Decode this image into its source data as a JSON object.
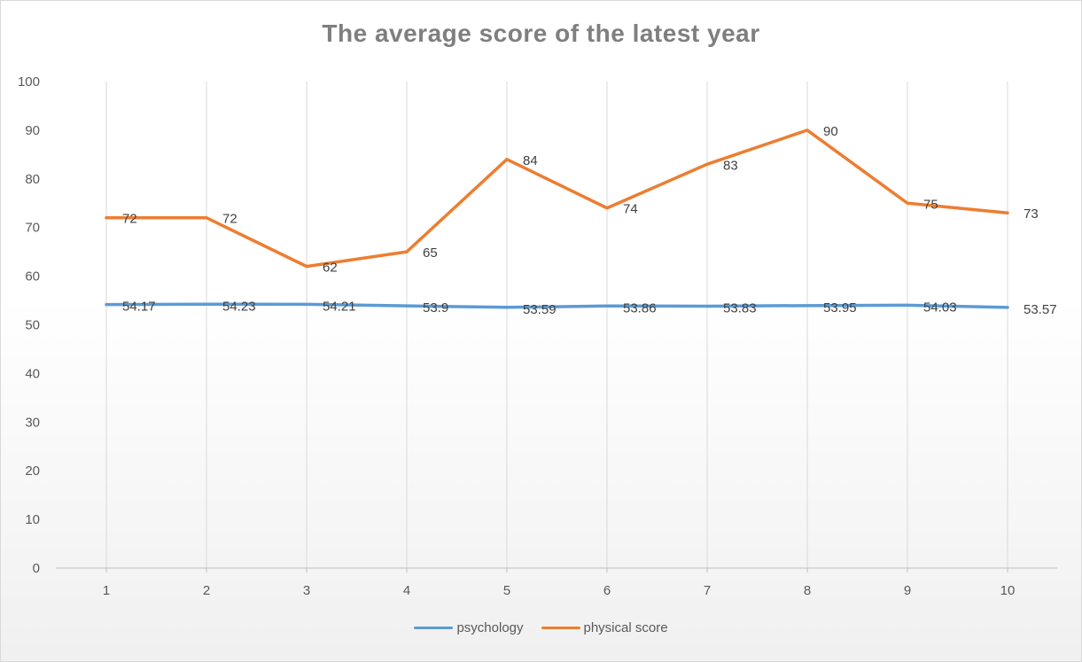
{
  "chart_data": {
    "type": "line",
    "title": "The average score of the latest year",
    "categories": [
      "1",
      "2",
      "3",
      "4",
      "5",
      "6",
      "7",
      "8",
      "9",
      "10"
    ],
    "ylim": [
      0,
      100
    ],
    "yticks": [
      "0",
      "10",
      "20",
      "30",
      "40",
      "50",
      "60",
      "70",
      "80",
      "90",
      "100"
    ],
    "grid": "vertical",
    "legend_position": "bottom",
    "series": [
      {
        "name": "psychology",
        "color": "#5b9bd5",
        "values": [
          54.17,
          54.23,
          54.21,
          53.9,
          53.59,
          53.86,
          53.83,
          53.95,
          54.03,
          53.57
        ],
        "labels": [
          "54.17",
          "54.23",
          "54.21",
          "53.9",
          "53.59",
          "53.86",
          "53.83",
          "53.95",
          "54.03",
          "53.57"
        ]
      },
      {
        "name": "physical score",
        "color": "#ed7d31",
        "values": [
          72,
          72,
          62,
          65,
          84,
          74,
          83,
          90,
          75,
          73
        ],
        "labels": [
          "72",
          "72",
          "62",
          "65",
          "84",
          "74",
          "83",
          "90",
          "75",
          "73"
        ]
      }
    ]
  }
}
